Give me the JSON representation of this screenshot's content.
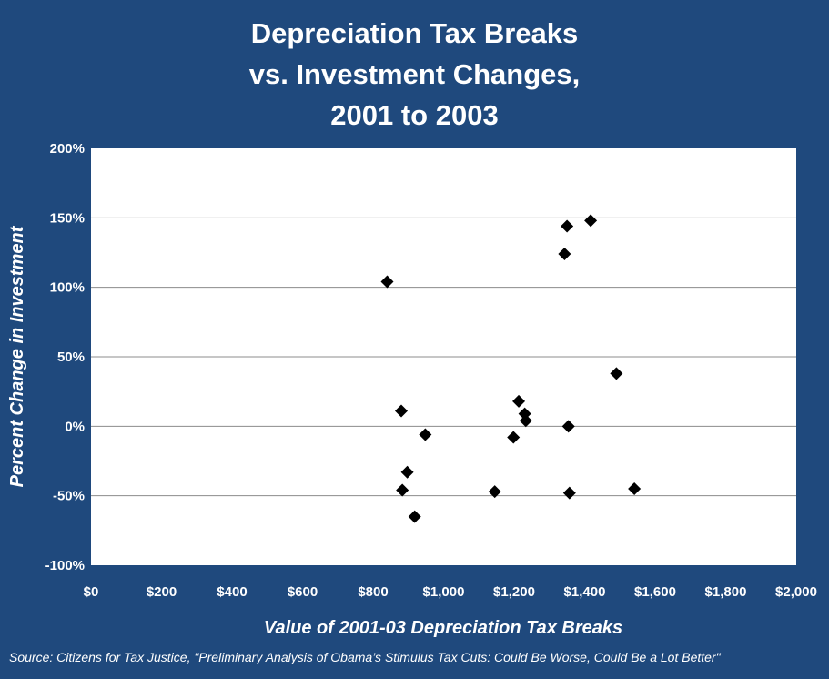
{
  "title_lines": [
    "Depreciation Tax Breaks",
    "vs. Investment Changes,",
    "2001 to 2003"
  ],
  "source": "Source: Citizens for Tax Justice, \"Preliminary Analysis of Obama’s Stimulus Tax Cuts: Could Be Worse, Could Be a Lot Better\"",
  "colors": {
    "background": "#1f497d",
    "plot": "#ffffff",
    "marker": "#000000",
    "text": "#ffffff",
    "grid": "#8c8c8c"
  },
  "chart_data": {
    "type": "scatter",
    "title": "Depreciation Tax Breaks vs. Investment Changes, 2001 to 2003",
    "xlabel": "Value of 2001-03 Depreciation Tax Breaks",
    "ylabel": "Percent Change in Investment",
    "xlim": [
      0,
      2000
    ],
    "ylim": [
      -100,
      200
    ],
    "xticks": [
      0,
      200,
      400,
      600,
      800,
      1000,
      1200,
      1400,
      1600,
      1800,
      2000
    ],
    "xtick_labels": [
      "$0",
      "$200",
      "$400",
      "$600",
      "$800",
      "$1,000",
      "$1,200",
      "$1,400",
      "$1,600",
      "$1,800",
      "$2,000"
    ],
    "yticks": [
      -100,
      -50,
      0,
      50,
      100,
      150,
      200
    ],
    "ytick_labels": [
      "-100%",
      "-50%",
      "0%",
      "50%",
      "100%",
      "150%",
      "200%"
    ],
    "grid": "horizontal",
    "legend": "none",
    "marker": "diamond",
    "points": [
      {
        "x": 840,
        "y": 104
      },
      {
        "x": 880,
        "y": 11
      },
      {
        "x": 883,
        "y": -46
      },
      {
        "x": 897,
        "y": -33
      },
      {
        "x": 918,
        "y": -65
      },
      {
        "x": 948,
        "y": -6
      },
      {
        "x": 1145,
        "y": -47
      },
      {
        "x": 1198,
        "y": -8
      },
      {
        "x": 1213,
        "y": 18
      },
      {
        "x": 1230,
        "y": 9
      },
      {
        "x": 1233,
        "y": 4
      },
      {
        "x": 1343,
        "y": 124
      },
      {
        "x": 1350,
        "y": 144
      },
      {
        "x": 1354,
        "y": 0
      },
      {
        "x": 1357,
        "y": -48
      },
      {
        "x": 1417,
        "y": 148
      },
      {
        "x": 1490,
        "y": 38
      },
      {
        "x": 1541,
        "y": -45
      }
    ]
  }
}
